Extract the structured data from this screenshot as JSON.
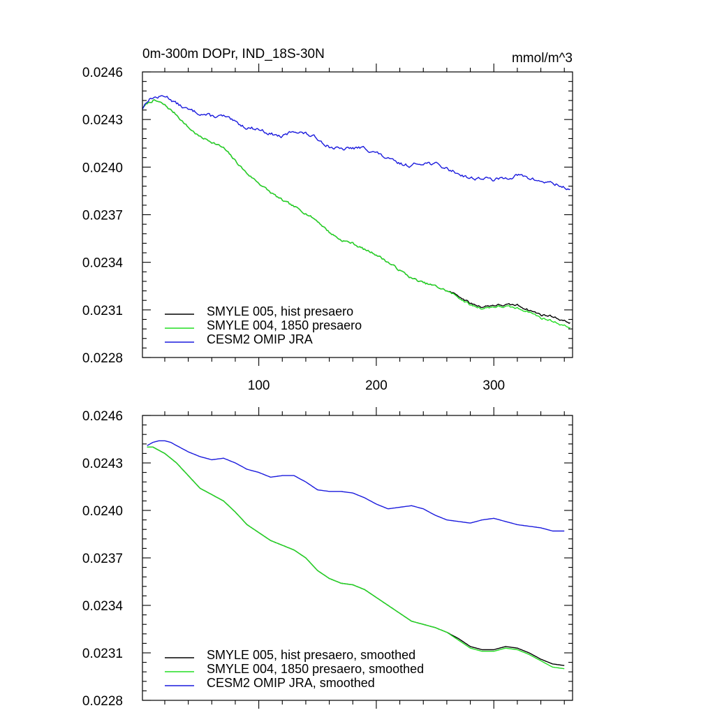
{
  "chart_data": [
    {
      "type": "line",
      "title": "0m-300m DOPr, IND_18S-30N",
      "units": "mmol/m^3",
      "xlim": [
        1,
        367
      ],
      "ylim": [
        0.0228,
        0.0246
      ],
      "x_ticks": [
        100,
        200,
        300
      ],
      "y_ticks": [
        "0.0246",
        "0.0243",
        "0.0240",
        "0.0237",
        "0.0234",
        "0.0231",
        "0.0228"
      ],
      "legend_position": "bottom-left",
      "grid": false,
      "series": [
        {
          "name": "SMYLE 005, hist presaero",
          "color": "#000000",
          "x": [
            1,
            5,
            10,
            15,
            20,
            30,
            40,
            50,
            60,
            70,
            80,
            90,
            100,
            110,
            120,
            130,
            140,
            150,
            160,
            170,
            180,
            190,
            200,
            210,
            220,
            230,
            240,
            250,
            260,
            270,
            280,
            290,
            300,
            310,
            320,
            330,
            340,
            350,
            360,
            365
          ],
          "y": [
            0.02437,
            0.0244,
            0.02442,
            0.02441,
            0.02439,
            0.02433,
            0.02425,
            0.02419,
            0.02416,
            0.02412,
            0.02404,
            0.02396,
            0.0239,
            0.02384,
            0.02379,
            0.02375,
            0.02371,
            0.02366,
            0.02359,
            0.02354,
            0.02352,
            0.02348,
            0.02345,
            0.0234,
            0.02335,
            0.0233,
            0.02327,
            0.02325,
            0.02322,
            0.02319,
            0.02314,
            0.02312,
            0.02313,
            0.02313,
            0.02313,
            0.0231,
            0.02307,
            0.02306,
            0.02303,
            0.02302
          ],
          "noise": 1.2e-05,
          "seed": 7
        },
        {
          "name": "SMYLE 004, 1850 presaero",
          "color": "#22dd22",
          "x": [
            1,
            5,
            10,
            15,
            20,
            30,
            40,
            50,
            60,
            70,
            80,
            90,
            100,
            110,
            120,
            130,
            140,
            150,
            160,
            170,
            180,
            190,
            200,
            210,
            220,
            230,
            240,
            250,
            260,
            270,
            280,
            290,
            300,
            310,
            320,
            330,
            340,
            350,
            360,
            365
          ],
          "y": [
            0.02437,
            0.0244,
            0.02442,
            0.02441,
            0.02439,
            0.02433,
            0.02425,
            0.02419,
            0.02416,
            0.02412,
            0.02404,
            0.02396,
            0.0239,
            0.02384,
            0.02379,
            0.02375,
            0.02371,
            0.02366,
            0.02359,
            0.02354,
            0.02352,
            0.02348,
            0.02345,
            0.0234,
            0.02335,
            0.0233,
            0.02327,
            0.02325,
            0.02322,
            0.02318,
            0.02313,
            0.02311,
            0.02312,
            0.02312,
            0.02311,
            0.02309,
            0.02305,
            0.02303,
            0.023,
            0.02299
          ],
          "noise": 1.2e-05,
          "seed": 7
        },
        {
          "name": "CESM2 OMIP JRA",
          "color": "#1a1add",
          "x": [
            1,
            5,
            10,
            15,
            20,
            25,
            30,
            40,
            50,
            60,
            70,
            80,
            90,
            100,
            110,
            120,
            130,
            140,
            150,
            160,
            170,
            180,
            190,
            200,
            210,
            220,
            230,
            240,
            250,
            260,
            270,
            280,
            290,
            300,
            310,
            320,
            330,
            340,
            350,
            360,
            365
          ],
          "y": [
            0.02437,
            0.02442,
            0.02444,
            0.02444,
            0.02445,
            0.02443,
            0.0244,
            0.02436,
            0.02434,
            0.02432,
            0.02432,
            0.02428,
            0.02425,
            0.02424,
            0.02421,
            0.02419,
            0.02423,
            0.02421,
            0.02418,
            0.02413,
            0.02411,
            0.02412,
            0.02412,
            0.02409,
            0.02405,
            0.02402,
            0.02401,
            0.02403,
            0.02402,
            0.02399,
            0.02396,
            0.02393,
            0.02393,
            0.02392,
            0.02393,
            0.02395,
            0.02393,
            0.02391,
            0.0239,
            0.02387,
            0.02386
          ],
          "noise": 1.8e-05,
          "seed": 13
        }
      ]
    },
    {
      "type": "line",
      "title": "",
      "units": "",
      "xlim": [
        1,
        367
      ],
      "ylim": [
        0.0228,
        0.0246
      ],
      "x_ticks": [
        100,
        200,
        300
      ],
      "y_ticks": [
        "0.0246",
        "0.0243",
        "0.0240",
        "0.0237",
        "0.0234",
        "0.0231",
        "0.0228"
      ],
      "legend_position": "bottom-left",
      "grid": false,
      "series": [
        {
          "name": "SMYLE 005, hist presaero, smoothed",
          "color": "#000000",
          "x": [
            5,
            10,
            15,
            20,
            30,
            40,
            50,
            60,
            70,
            80,
            90,
            100,
            110,
            120,
            130,
            140,
            150,
            160,
            170,
            180,
            190,
            200,
            210,
            220,
            230,
            240,
            250,
            260,
            270,
            280,
            290,
            300,
            310,
            320,
            330,
            340,
            350,
            360
          ],
          "y": [
            0.0244,
            0.0244,
            0.02438,
            0.02436,
            0.0243,
            0.02422,
            0.02414,
            0.0241,
            0.02406,
            0.02399,
            0.02391,
            0.02386,
            0.02381,
            0.02378,
            0.02375,
            0.0237,
            0.02362,
            0.02357,
            0.02354,
            0.02353,
            0.0235,
            0.02345,
            0.0234,
            0.02335,
            0.0233,
            0.02328,
            0.02326,
            0.02323,
            0.02319,
            0.02314,
            0.02312,
            0.02312,
            0.02314,
            0.02313,
            0.0231,
            0.02306,
            0.02303,
            0.02302
          ],
          "noise": 0,
          "seed": 1
        },
        {
          "name": "SMYLE 004, 1850 presaero, smoothed",
          "color": "#22dd22",
          "x": [
            5,
            10,
            15,
            20,
            30,
            40,
            50,
            60,
            70,
            80,
            90,
            100,
            110,
            120,
            130,
            140,
            150,
            160,
            170,
            180,
            190,
            200,
            210,
            220,
            230,
            240,
            250,
            260,
            270,
            280,
            290,
            300,
            310,
            320,
            330,
            340,
            350,
            360
          ],
          "y": [
            0.0244,
            0.0244,
            0.02438,
            0.02436,
            0.0243,
            0.02422,
            0.02414,
            0.0241,
            0.02406,
            0.02399,
            0.02391,
            0.02386,
            0.02381,
            0.02378,
            0.02375,
            0.0237,
            0.02362,
            0.02357,
            0.02354,
            0.02353,
            0.0235,
            0.02345,
            0.0234,
            0.02335,
            0.0233,
            0.02328,
            0.02326,
            0.02323,
            0.02318,
            0.02313,
            0.02311,
            0.02311,
            0.02313,
            0.02312,
            0.02309,
            0.02305,
            0.02301,
            0.023
          ],
          "noise": 0,
          "seed": 1
        },
        {
          "name": "CESM2 OMIP JRA, smoothed",
          "color": "#1a1add",
          "x": [
            5,
            10,
            15,
            20,
            25,
            30,
            40,
            50,
            60,
            70,
            80,
            90,
            100,
            110,
            120,
            130,
            140,
            150,
            160,
            170,
            180,
            190,
            200,
            210,
            220,
            230,
            240,
            250,
            260,
            270,
            280,
            290,
            300,
            310,
            320,
            330,
            340,
            350,
            360
          ],
          "y": [
            0.02441,
            0.02443,
            0.02444,
            0.02444,
            0.02443,
            0.02441,
            0.02437,
            0.02434,
            0.02432,
            0.02433,
            0.0243,
            0.02426,
            0.02424,
            0.02421,
            0.02422,
            0.02422,
            0.02418,
            0.02413,
            0.02412,
            0.02412,
            0.02411,
            0.02408,
            0.02404,
            0.02401,
            0.02402,
            0.02403,
            0.02401,
            0.02397,
            0.02394,
            0.02393,
            0.02392,
            0.02394,
            0.02395,
            0.02393,
            0.02391,
            0.0239,
            0.02389,
            0.02387,
            0.02387
          ],
          "noise": 0,
          "seed": 1
        }
      ]
    }
  ]
}
